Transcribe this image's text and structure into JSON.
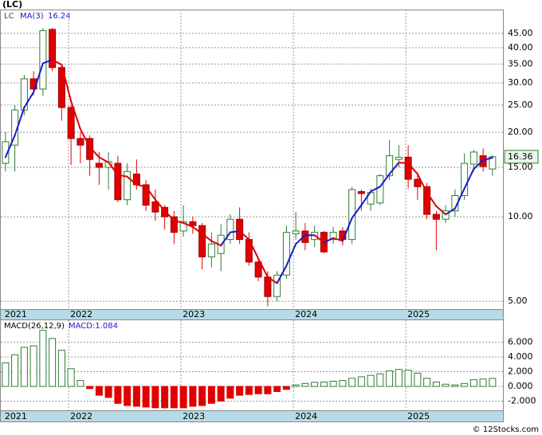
{
  "chart_data": [
    {
      "type": "candlestick",
      "title": "(LC)",
      "symbol": "LC",
      "ma_name": "MA(3)",
      "log_scale": true,
      "grid": true,
      "up_color": "#2e7d32",
      "down_color": "#e00000",
      "ma_up_color": "#1a1acc",
      "ma_down_color": "#e00000",
      "categories": [
        "2021",
        null,
        null,
        null,
        null,
        null,
        null,
        "2022",
        null,
        null,
        null,
        null,
        null,
        null,
        null,
        null,
        null,
        null,
        null,
        "2023",
        null,
        null,
        null,
        null,
        null,
        null,
        null,
        null,
        null,
        null,
        null,
        "2024",
        null,
        null,
        null,
        null,
        null,
        null,
        null,
        null,
        null,
        null,
        null,
        "2025",
        null,
        null,
        null,
        null,
        null,
        null,
        null,
        null,
        null
      ],
      "open": [
        15.5,
        18,
        24,
        31,
        28.5,
        46.5,
        34,
        24.5,
        19,
        19,
        15.5,
        15,
        15.5,
        11.5,
        14.2,
        13,
        11.3,
        10.8,
        10,
        8.9,
        9.6,
        9.3,
        7.2,
        7.4,
        8.3,
        9.8,
        8.3,
        6.9,
        6.1,
        5.2,
        6.2,
        8.7,
        8.9,
        8.3,
        8.8,
        8.3,
        8.9,
        8.3,
        12.3,
        11.1,
        11.2,
        14,
        16,
        16.3,
        13.6,
        12.8,
        10.2,
        9.8,
        10.5,
        11.9,
        15.4,
        16.5,
        14.8
      ],
      "high": [
        20,
        25,
        32,
        33,
        47,
        47,
        35,
        25,
        20,
        19.5,
        17,
        17,
        16.5,
        15.5,
        16,
        13.5,
        12.5,
        11,
        10.5,
        11,
        10,
        9.5,
        8.8,
        9.4,
        10.2,
        10.8,
        8.8,
        7,
        6.4,
        6.4,
        9.3,
        10.4,
        9.5,
        9.3,
        8.9,
        9.2,
        9.2,
        12.8,
        12.5,
        12.6,
        14.2,
        18.8,
        18,
        18,
        14,
        13.2,
        10.5,
        11,
        12.5,
        16.8,
        17.3,
        17.5,
        16.6
      ],
      "low": [
        14.5,
        14.5,
        23,
        27,
        27,
        33,
        22,
        15.3,
        15.5,
        14,
        13,
        12.5,
        11.3,
        11,
        12.5,
        10.5,
        9.7,
        9,
        8,
        8.5,
        8.7,
        6.5,
        6.6,
        6.4,
        8,
        8,
        6.7,
        5.9,
        4.8,
        5,
        6,
        8.3,
        7.6,
        7.8,
        7.4,
        8,
        7.9,
        8,
        10.5,
        10.5,
        11,
        13.5,
        15,
        12.6,
        11.5,
        9.8,
        7.6,
        9.5,
        10,
        11.5,
        14.5,
        14.5,
        14
      ],
      "close": [
        18.5,
        24,
        31,
        28.5,
        46,
        34,
        24.5,
        19,
        18,
        16,
        15,
        15.7,
        11.5,
        14.5,
        13,
        11,
        10.4,
        10,
        8.8,
        9.6,
        9.3,
        7.2,
        8,
        8.6,
        9.8,
        8.3,
        6.9,
        6.1,
        5.2,
        6.2,
        8.8,
        8.9,
        8.1,
        8.8,
        7.5,
        8.8,
        8.3,
        12.5,
        12.1,
        12.2,
        14,
        16.5,
        16.3,
        13.6,
        12.8,
        10.2,
        9.8,
        10.5,
        11.9,
        15.5,
        17,
        15.1,
        16.36
      ],
      "ma": [
        16.3,
        19.5,
        24.5,
        27.8,
        35.2,
        36.2,
        34.8,
        25.8,
        20.5,
        17.7,
        16.3,
        15.6,
        14.1,
        13.9,
        13,
        12.8,
        11.5,
        10.5,
        9.7,
        9.5,
        9.2,
        8.7,
        8.2,
        7.9,
        8.8,
        8.9,
        8.3,
        7.1,
        6.1,
        5.8,
        6.7,
        8,
        8.6,
        8.6,
        8.1,
        8.4,
        8.2,
        9.9,
        11,
        12.3,
        12.8,
        14.2,
        15.6,
        15.5,
        14.2,
        12.2,
        10.9,
        10.2,
        10.7,
        12.6,
        14.8,
        15.9,
        16.24
      ],
      "ylim": [
        4.69,
        54.7
      ],
      "yticks": [
        {
          "value": 5,
          "label": "5.00"
        },
        {
          "value": 10,
          "label": "10.00"
        },
        {
          "value": 15,
          "label": "15.00"
        },
        {
          "value": 20,
          "label": "20.00"
        },
        {
          "value": 25,
          "label": "25.00"
        },
        {
          "value": 30,
          "label": "30.00"
        },
        {
          "value": 35,
          "label": "35.00"
        },
        {
          "value": 40,
          "label": "40.00"
        },
        {
          "value": 45,
          "label": "45.00"
        }
      ]
    },
    {
      "type": "bar",
      "title": "MACD(26,12,9)",
      "value_text": "MACD:1.084",
      "grid": true,
      "up_color": "#2e7d32",
      "down_color": "#e00000",
      "categories": [
        "2021",
        null,
        null,
        null,
        null,
        null,
        null,
        "2022",
        null,
        null,
        null,
        null,
        null,
        null,
        null,
        null,
        null,
        null,
        null,
        "2023",
        null,
        null,
        null,
        null,
        null,
        null,
        null,
        null,
        null,
        null,
        null,
        "2024",
        null,
        null,
        null,
        null,
        null,
        null,
        null,
        null,
        null,
        null,
        null,
        "2025",
        null,
        null,
        null,
        null,
        null,
        null,
        null,
        null,
        null
      ],
      "values": [
        3.2,
        4.3,
        5.3,
        5.5,
        7.6,
        6.5,
        4.9,
        2.4,
        0.8,
        -0.3,
        -1.2,
        -1.5,
        -2.3,
        -2.6,
        -2.7,
        -2.8,
        -2.9,
        -2.9,
        -2.9,
        -2.9,
        -2.7,
        -2.6,
        -2.3,
        -2,
        -1.6,
        -1.2,
        -1.1,
        -1,
        -1,
        -0.7,
        -0.4,
        0.2,
        0.4,
        0.55,
        0.6,
        0.7,
        0.8,
        1.1,
        1.3,
        1.5,
        1.7,
        2.1,
        2.3,
        2.2,
        1.8,
        1.1,
        0.6,
        0.3,
        0.2,
        0.4,
        0.9,
        1,
        1.084
      ],
      "ylim": [
        -3.35,
        8.97
      ],
      "yticks": [
        {
          "value": -2,
          "label": "-2.000"
        },
        {
          "value": 0,
          "label": "0.000"
        },
        {
          "value": 2,
          "label": "2.000"
        },
        {
          "value": 4,
          "label": "4.000"
        },
        {
          "value": 6,
          "label": "6.000"
        }
      ]
    }
  ],
  "footer": "© 12Stocks.com"
}
